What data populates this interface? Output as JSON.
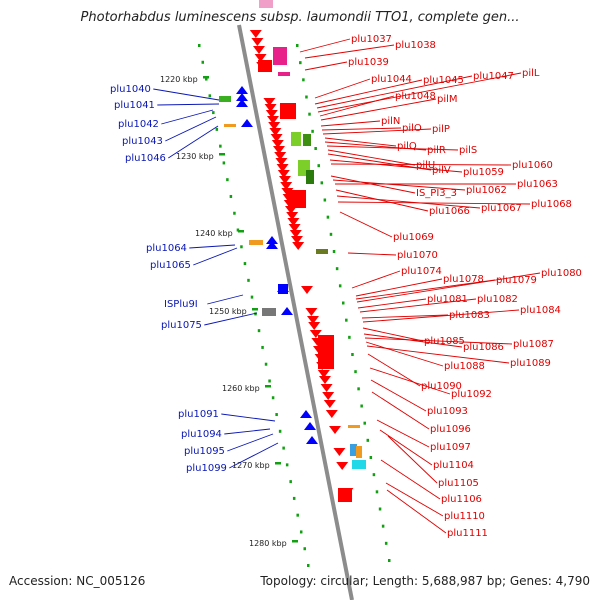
{
  "title": "Photorhabdus luminescens subsp. laumondii TTO1, complete gen...",
  "footer": {
    "accession": "Accession: NC_005126",
    "summary": "Topology: circular; Length: 5,688,987 bp; Genes: 4,790"
  },
  "colors": {
    "forward_strand": "#0000ff",
    "reverse_strand": "#ff0000",
    "forward_label": "#0a17b4",
    "reverse_label": "#e00000",
    "ruler_dots": "#11a011",
    "backbone": "#8c8c8c"
  },
  "scale_labels": [
    "1220 kbp",
    "1230 kbp",
    "1240 kbp",
    "1250 kbp",
    "1260 kbp",
    "1270 kbp",
    "1280 kbp"
  ],
  "forward_gene_labels": [
    "plu1040",
    "plu1041",
    "plu1042",
    "plu1043",
    "plu1046",
    "plu1064",
    "plu1065",
    "ISPlu9I",
    "plu1075",
    "plu1091",
    "plu1094",
    "plu1095",
    "plu1099"
  ],
  "reverse_gene_labels": [
    "plu1037",
    "plu1038",
    "plu1039",
    "plu1044",
    "plu1045",
    "plu1047",
    "pilL",
    "plu1048",
    "pilM",
    "pilN",
    "pilO",
    "pilP",
    "pilQ",
    "pilR",
    "pilS",
    "pilU",
    "pilV",
    "plu1059",
    "plu1060",
    "IS_PI3_3",
    "plu1062",
    "plu1063",
    "plu1066",
    "plu1067",
    "plu1068",
    "plu1069",
    "plu1070",
    "plu1074",
    "plu1078",
    "plu1079",
    "plu1080",
    "plu1081",
    "plu1082",
    "plu1083",
    "plu1084",
    "plu1085",
    "plu1086",
    "plu1087",
    "plu1088",
    "plu1089",
    "plu1090",
    "plu1092",
    "plu1093",
    "plu1096",
    "plu1097",
    "plu1104",
    "plu1105",
    "plu1106",
    "plu1110",
    "plu1111"
  ]
}
